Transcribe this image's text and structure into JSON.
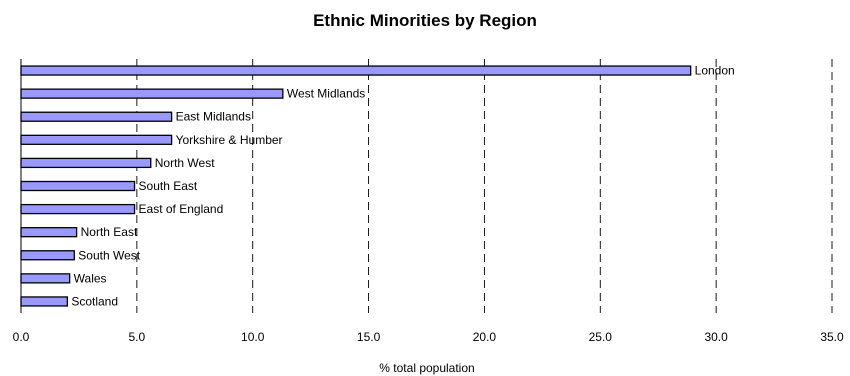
{
  "chart_data": {
    "type": "bar",
    "orientation": "horizontal",
    "title": "Ethnic Minorities by Region",
    "xlabel": "% total population",
    "ylabel": "",
    "xlim": [
      0,
      35
    ],
    "x_ticks": [
      "0.0",
      "5.0",
      "10.0",
      "15.0",
      "20.0",
      "25.0",
      "30.0",
      "35.0"
    ],
    "x_tick_values": [
      0,
      5,
      10,
      15,
      20,
      25,
      30,
      35
    ],
    "grid": "vertical-dashed",
    "categories": [
      "London",
      "West Midlands",
      "East Midlands",
      "Yorkshire & Humber",
      "North West",
      "South East",
      "East of England",
      "North East",
      "South West",
      "Wales",
      "Scotland"
    ],
    "values": [
      28.9,
      11.3,
      6.5,
      6.5,
      5.6,
      4.9,
      4.9,
      2.4,
      2.3,
      2.1,
      2.0
    ],
    "bar_color": "#9999ff",
    "bar_stroke": "#000000"
  }
}
